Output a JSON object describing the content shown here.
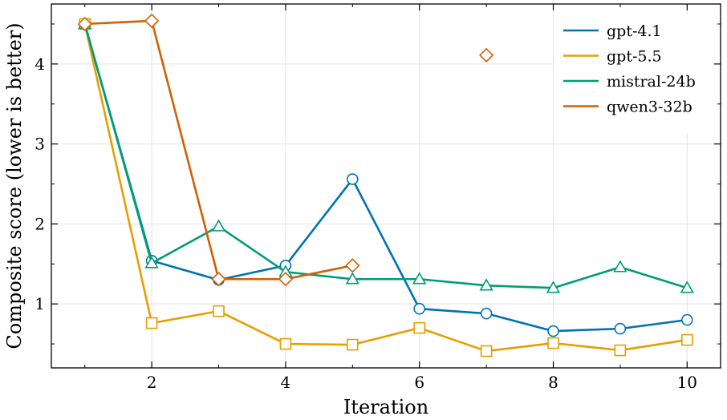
{
  "chart_data": {
    "type": "line",
    "title": "",
    "xlabel": "Iteration",
    "ylabel": "Composite score (lower is better)",
    "xlim": [
      0.5,
      10.5
    ],
    "ylim": [
      0.2,
      4.75
    ],
    "xticks": [
      2,
      4,
      6,
      8,
      10
    ],
    "yticks": [
      1,
      2,
      3,
      4
    ],
    "grid": true,
    "legend_position": "top-right",
    "x": [
      1,
      2,
      3,
      4,
      5,
      6,
      7,
      8,
      9,
      10
    ],
    "series": [
      {
        "name": "gpt-4.1",
        "color": "#0072b2",
        "marker": "circle",
        "values": [
          4.5,
          1.54,
          1.3,
          1.48,
          2.56,
          0.94,
          0.88,
          0.66,
          0.69,
          0.8
        ]
      },
      {
        "name": "gpt-5.5",
        "color": "#e69f00",
        "marker": "square",
        "values": [
          4.5,
          0.76,
          0.91,
          0.5,
          0.49,
          0.7,
          0.41,
          0.51,
          0.42,
          0.55
        ]
      },
      {
        "name": "mistral-24b",
        "color": "#009e73",
        "marker": "triangle",
        "values": [
          4.5,
          1.51,
          1.97,
          1.4,
          1.31,
          1.31,
          1.23,
          1.2,
          1.46,
          1.2
        ]
      },
      {
        "name": "qwen3-32b",
        "color": "#d55e00",
        "marker": "diamond",
        "values": [
          4.5,
          4.54,
          1.31,
          1.31,
          1.48,
          null,
          4.11,
          null,
          null,
          null
        ]
      }
    ]
  }
}
